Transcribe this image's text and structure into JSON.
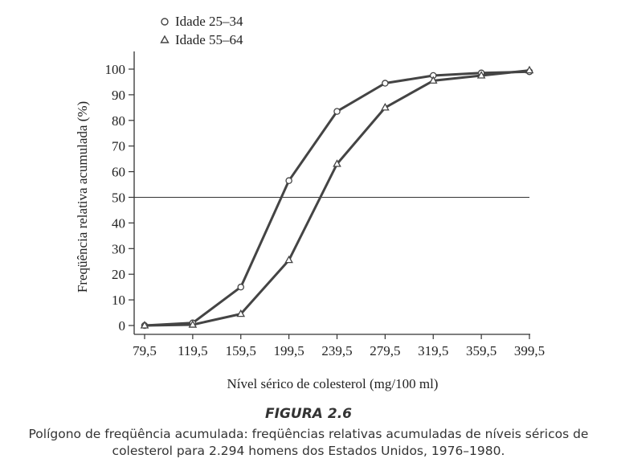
{
  "chart_data": {
    "type": "line",
    "x": [
      79.5,
      119.5,
      159.5,
      199.5,
      239.5,
      279.5,
      319.5,
      359.5,
      399.5
    ],
    "x_tick_labels": [
      "79,5",
      "119,5",
      "159,5",
      "199,5",
      "239,5",
      "279,5",
      "319,5",
      "359,5",
      "399,5"
    ],
    "series": [
      {
        "name": "Idade 25–34",
        "marker": "circle",
        "values": [
          0,
          1,
          15,
          56.5,
          83.5,
          94.5,
          97.5,
          98.5,
          99
        ]
      },
      {
        "name": "Idade 55–64",
        "marker": "triangle",
        "values": [
          0,
          0.3,
          4.5,
          25.5,
          63,
          85,
          95.5,
          97.5,
          99.5
        ]
      }
    ],
    "reference_line": {
      "y": 50
    },
    "y_ticks": [
      0,
      10,
      20,
      30,
      40,
      50,
      60,
      70,
      80,
      90,
      100
    ],
    "xlim": [
      79.5,
      399.5
    ],
    "ylim": [
      0,
      100
    ],
    "xlabel": "Nível sérico de colesterol (mg/100 ml)",
    "ylabel": "Freqüência relativa acumulada (%)",
    "legend_position": "top-left",
    "grid": false
  },
  "figure_label": "FIGURA 2.6",
  "caption": "Polígono de freqüência acumulada: freqüências relativas acumuladas de níveis séricos de colesterol para 2.294 homens dos Estados Unidos, 1976–1980.",
  "colors": {
    "line": "#444444",
    "marker_fill": "#ffffff",
    "text": "#222222"
  }
}
